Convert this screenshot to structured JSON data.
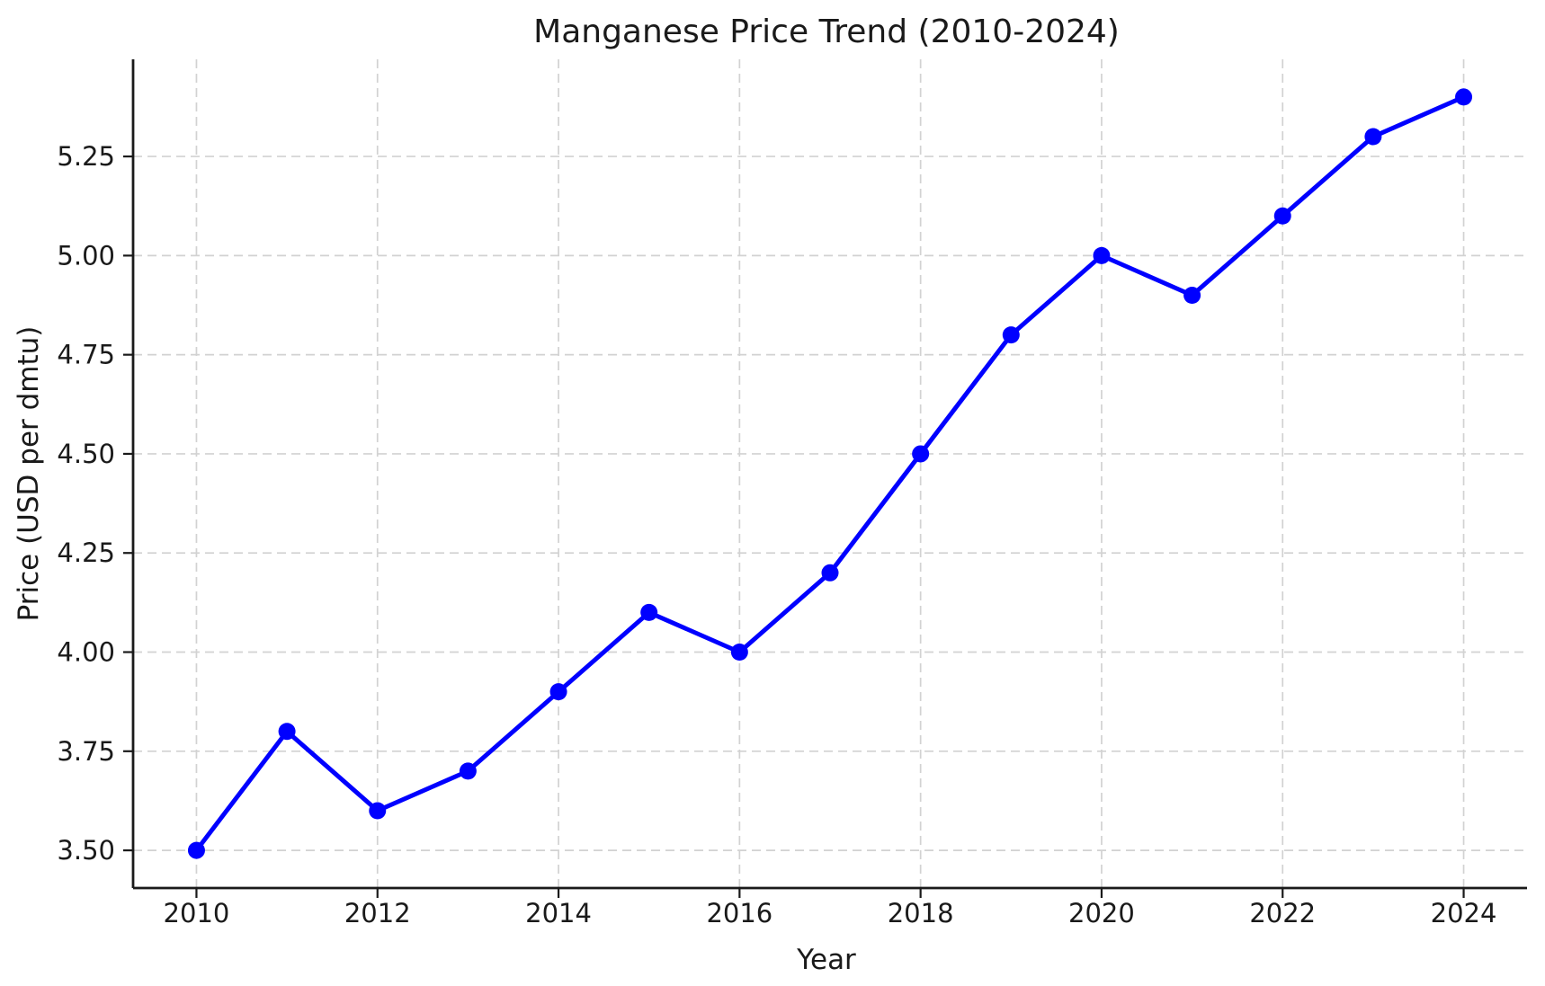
{
  "chart_data": {
    "type": "line",
    "title": "Manganese Price Trend (2010-2024)",
    "xlabel": "Year",
    "ylabel": "Price (USD per dmtu)",
    "x": [
      2010,
      2011,
      2012,
      2013,
      2014,
      2015,
      2016,
      2017,
      2018,
      2019,
      2020,
      2021,
      2022,
      2023,
      2024
    ],
    "y": [
      3.5,
      3.8,
      3.6,
      3.7,
      3.9,
      4.1,
      4.0,
      4.2,
      4.5,
      4.8,
      5.0,
      4.9,
      5.1,
      5.3,
      5.4
    ],
    "xlim": [
      2009.3,
      2024.7
    ],
    "ylim": [
      3.405,
      5.495
    ],
    "xticks": [
      2010,
      2012,
      2014,
      2016,
      2018,
      2020,
      2022,
      2024
    ],
    "xtick_labels": [
      "2010",
      "2012",
      "2014",
      "2016",
      "2018",
      "2020",
      "2022",
      "2024"
    ],
    "yticks": [
      3.5,
      3.75,
      4.0,
      4.25,
      4.5,
      4.75,
      5.0,
      5.25
    ],
    "ytick_labels": [
      "3.50",
      "3.75",
      "4.00",
      "4.25",
      "4.50",
      "4.75",
      "5.00",
      "5.25"
    ],
    "grid": true,
    "legend": "none",
    "line_color": "#0000ff",
    "marker_color": "#0000ff",
    "grid_color": "#d2d2d2",
    "spine_color": "#1a1a1a",
    "text_color": "#1a1a1a",
    "background_color": "#ffffff"
  }
}
